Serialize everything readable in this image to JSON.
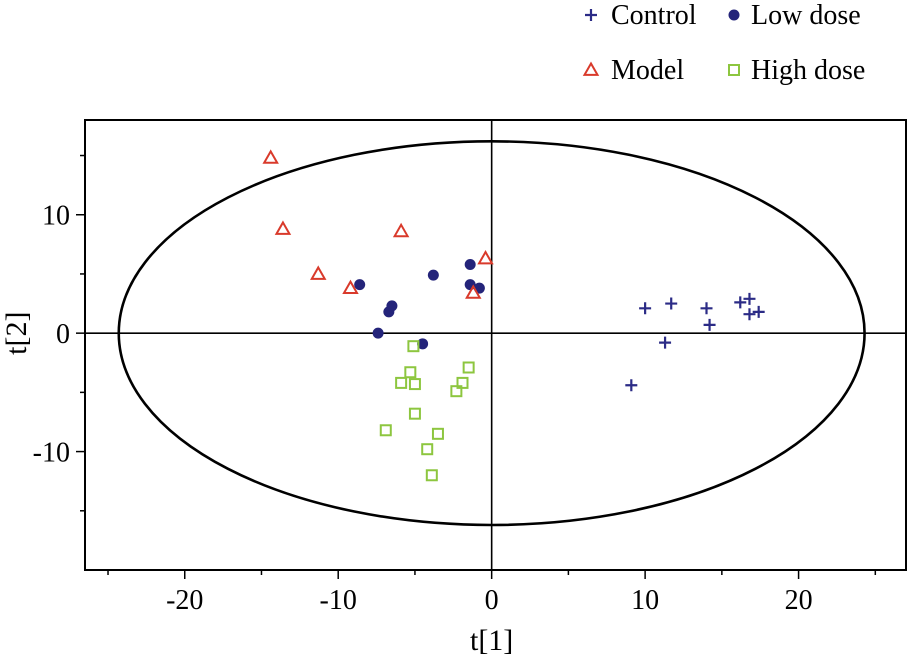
{
  "chart_data": {
    "type": "scatter",
    "title": "",
    "xlabel": "t[1]",
    "ylabel": "t[2]",
    "xlim": [
      -26.5,
      27
    ],
    "ylim": [
      -20,
      18
    ],
    "xticks": [
      -20,
      -10,
      0,
      10,
      20
    ],
    "yticks": [
      -10,
      0,
      10
    ],
    "xtick_labels": [
      "-20",
      "-10",
      "0",
      "10",
      "20"
    ],
    "ytick_labels": [
      "-10",
      "0",
      "10"
    ],
    "ellipse": {
      "cx": 0,
      "cy": 0,
      "rx": 24.3,
      "ry": 16.2
    },
    "legend_position": "top-right",
    "series": [
      {
        "name": "Control",
        "marker": "plus",
        "color": "#2b2b86",
        "points": [
          [
            9.1,
            -4.4
          ],
          [
            10.0,
            2.1
          ],
          [
            11.3,
            -0.8
          ],
          [
            11.7,
            2.5
          ],
          [
            14.0,
            2.1
          ],
          [
            14.2,
            0.7
          ],
          [
            16.2,
            2.6
          ],
          [
            16.8,
            2.9
          ],
          [
            16.8,
            1.6
          ],
          [
            17.4,
            1.8
          ]
        ]
      },
      {
        "name": "Low dose",
        "marker": "circle",
        "color": "#24247a",
        "points": [
          [
            -8.6,
            4.1
          ],
          [
            -7.4,
            0.0
          ],
          [
            -6.7,
            1.8
          ],
          [
            -6.5,
            2.3
          ],
          [
            -4.5,
            -0.9
          ],
          [
            -3.8,
            4.9
          ],
          [
            -1.4,
            5.8
          ],
          [
            -1.4,
            4.1
          ],
          [
            -0.8,
            3.8
          ]
        ]
      },
      {
        "name": "Model",
        "marker": "triangle",
        "color": "#d93a2b",
        "points": [
          [
            -14.4,
            14.8
          ],
          [
            -13.6,
            8.8
          ],
          [
            -11.3,
            5.0
          ],
          [
            -9.2,
            3.8
          ],
          [
            -5.9,
            8.6
          ],
          [
            -1.2,
            3.4
          ],
          [
            -0.4,
            6.3
          ]
        ]
      },
      {
        "name": "High dose",
        "marker": "square",
        "color": "#8dc63f",
        "points": [
          [
            -6.9,
            -8.2
          ],
          [
            -5.9,
            -4.2
          ],
          [
            -5.3,
            -3.3
          ],
          [
            -5.1,
            -1.1
          ],
          [
            -5.0,
            -4.3
          ],
          [
            -5.0,
            -6.8
          ],
          [
            -4.2,
            -9.8
          ],
          [
            -3.9,
            -12.0
          ],
          [
            -3.5,
            -8.5
          ],
          [
            -2.3,
            -4.9
          ],
          [
            -1.9,
            -4.2
          ],
          [
            -1.5,
            -2.9
          ]
        ]
      }
    ]
  }
}
